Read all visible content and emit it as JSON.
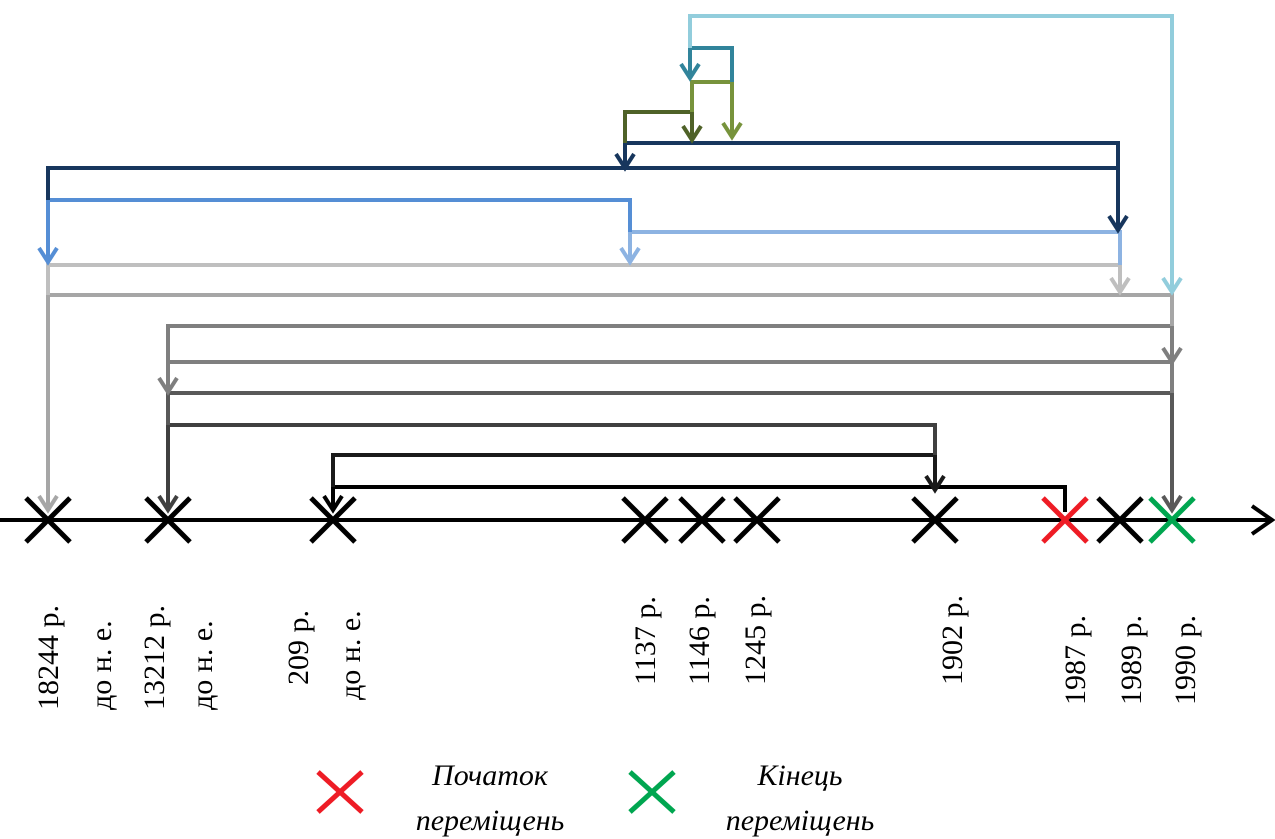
{
  "colors": {
    "axis": "#000000",
    "marker": "#000000",
    "start_marker": "#ee1c25",
    "end_marker": "#00a650"
  },
  "timeline": {
    "events": [
      {
        "line1": "18244 р.",
        "line2": "до н. е."
      },
      {
        "line1": "13212 р.",
        "line2": "до н. е."
      },
      {
        "line1": "209 р.",
        "line2": "до н. е."
      },
      {
        "line1": "1137 р.",
        "line2": ""
      },
      {
        "line1": "1146 р.",
        "line2": ""
      },
      {
        "line1": "1245 р.",
        "line2": ""
      },
      {
        "line1": "1902 р.",
        "line2": ""
      },
      {
        "line1": "1987 р.",
        "line2": "",
        "role": "start"
      },
      {
        "line1": "1989 р.",
        "line2": ""
      },
      {
        "line1": "1990 р.",
        "line2": "",
        "role": "end"
      }
    ]
  },
  "transitions": [
    {
      "from": "1987 р.",
      "to": "209 р. до н. е.",
      "color": "#000000"
    },
    {
      "from": "209 р. до н. е.",
      "to": "1902 р.",
      "color": "#1a1a1a"
    },
    {
      "from": "1902 р.",
      "to": "13212 р. до н. е.",
      "color": "#404040"
    },
    {
      "from": "13212 р. до н. е.",
      "to": "1990 р.",
      "color": "#595959"
    },
    {
      "from": "1990 р.",
      "to": "13212 р. до н. е.",
      "color": "#7f7f7f"
    },
    {
      "from": "13212 р. до н. е.",
      "to": "1990 р.",
      "color": "#7f7f7f"
    },
    {
      "from": "1990 р.",
      "to": "18244 р. до н. е.",
      "color": "#a6a6a6"
    },
    {
      "from": "18244 р. до н. е.",
      "to": "1989 р.",
      "color": "#bfbfbf"
    },
    {
      "from": "1989 р.",
      "to": "1137 р.",
      "color": "#8db3e2"
    },
    {
      "from": "1137 р.",
      "to": "18244 р. до н. е.",
      "color": "#558ed5"
    },
    {
      "from": "18244 р. до н. е.",
      "to": "1989 р.",
      "color": "#17365d"
    },
    {
      "from": "1989 р.",
      "to": "1137 р.",
      "color": "#17365d"
    },
    {
      "from": "1137 р.",
      "to": "1146 р.",
      "color": "#4f6228"
    },
    {
      "from": "1146 р.",
      "to": "1245 р.",
      "color": "#77933c"
    },
    {
      "from": "1245 р.",
      "to": "1146 р.",
      "color": "#31849b"
    },
    {
      "from": "1146 р.",
      "to": "1990 р.",
      "color": "#92cddc"
    }
  ],
  "legend": {
    "start": {
      "line1": "Початок",
      "line2": "переміщень"
    },
    "end": {
      "line1": "Кінець",
      "line2": "переміщень"
    }
  }
}
